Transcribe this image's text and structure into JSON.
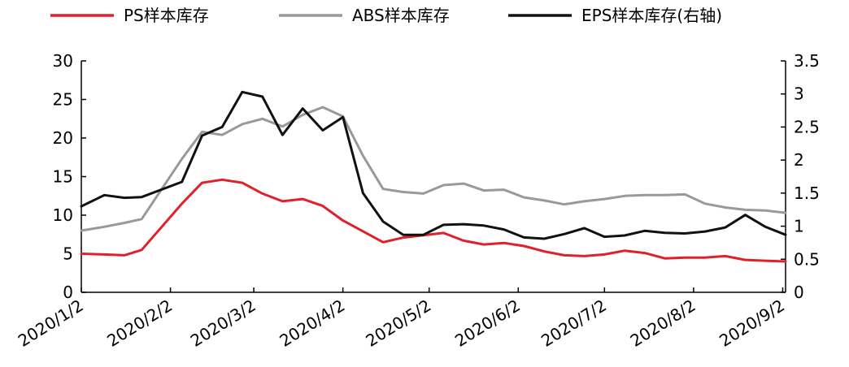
{
  "chart_data": {
    "type": "line",
    "x": [
      "2020/1/2",
      "2020/1/10",
      "2020/1/17",
      "2020/1/23",
      "2020/2/6",
      "2020/2/13",
      "2020/2/20",
      "2020/2/27",
      "2020/3/5",
      "2020/3/12",
      "2020/3/19",
      "2020/3/26",
      "2020/4/2",
      "2020/4/9",
      "2020/4/16",
      "2020/4/23",
      "2020/4/30",
      "2020/5/7",
      "2020/5/14",
      "2020/5/21",
      "2020/5/28",
      "2020/6/4",
      "2020/6/11",
      "2020/6/18",
      "2020/6/25",
      "2020/7/2",
      "2020/7/9",
      "2020/7/16",
      "2020/7/23",
      "2020/7/30",
      "2020/8/6",
      "2020/8/13",
      "2020/8/20",
      "2020/8/27",
      "2020/9/3"
    ],
    "x_tick_labels": [
      "2020/1/2",
      "2020/2/2",
      "2020/3/2",
      "2020/4/2",
      "2020/5/2",
      "2020/6/2",
      "2020/7/2",
      "2020/8/2",
      "2020/9/2"
    ],
    "y_left": {
      "ticks": [
        "0",
        "5",
        "10",
        "15",
        "20",
        "25",
        "30"
      ],
      "range": [
        0,
        30
      ]
    },
    "y_right": {
      "ticks": [
        "0",
        "0.5",
        "1",
        "1.5",
        "2",
        "2.5",
        "3",
        "3.5"
      ],
      "range": [
        0,
        3.5
      ]
    },
    "series": [
      {
        "name": "PS样本库存",
        "axis": "left",
        "color": "#e0202a",
        "values": [
          5.0,
          4.9,
          4.8,
          5.5,
          11.5,
          14.2,
          14.6,
          14.2,
          12.8,
          11.8,
          12.1,
          11.2,
          9.3,
          7.9,
          6.5,
          7.1,
          7.4,
          7.7,
          6.7,
          6.2,
          6.4,
          6.0,
          5.3,
          4.8,
          4.7,
          4.9,
          5.4,
          5.1,
          4.4,
          4.5,
          4.5,
          4.7,
          4.2,
          4.1,
          4.0
        ]
      },
      {
        "name": "ABS样本库存",
        "axis": "left",
        "color": "#999999",
        "values": [
          8.0,
          8.5,
          9.0,
          9.5,
          17.3,
          20.8,
          20.4,
          21.8,
          22.5,
          21.5,
          23.0,
          24.0,
          22.8,
          17.7,
          13.4,
          13.0,
          12.8,
          13.9,
          14.1,
          13.2,
          13.3,
          12.3,
          11.9,
          11.4,
          11.8,
          12.1,
          12.5,
          12.6,
          12.6,
          12.7,
          11.5,
          11.0,
          10.7,
          10.6,
          10.3
        ]
      },
      {
        "name": "EPS样本库存(右轴)",
        "axis": "right",
        "color": "#111111",
        "values": [
          1.3,
          1.47,
          1.43,
          1.44,
          1.67,
          2.37,
          2.5,
          3.03,
          2.96,
          2.38,
          2.78,
          2.45,
          2.65,
          1.5,
          1.07,
          0.87,
          0.87,
          1.02,
          1.03,
          1.01,
          0.95,
          0.83,
          0.81,
          0.88,
          0.97,
          0.84,
          0.86,
          0.93,
          0.9,
          0.89,
          0.92,
          0.98,
          1.17,
          0.99,
          0.87
        ]
      }
    ],
    "legend_position": "top",
    "grid": false
  }
}
